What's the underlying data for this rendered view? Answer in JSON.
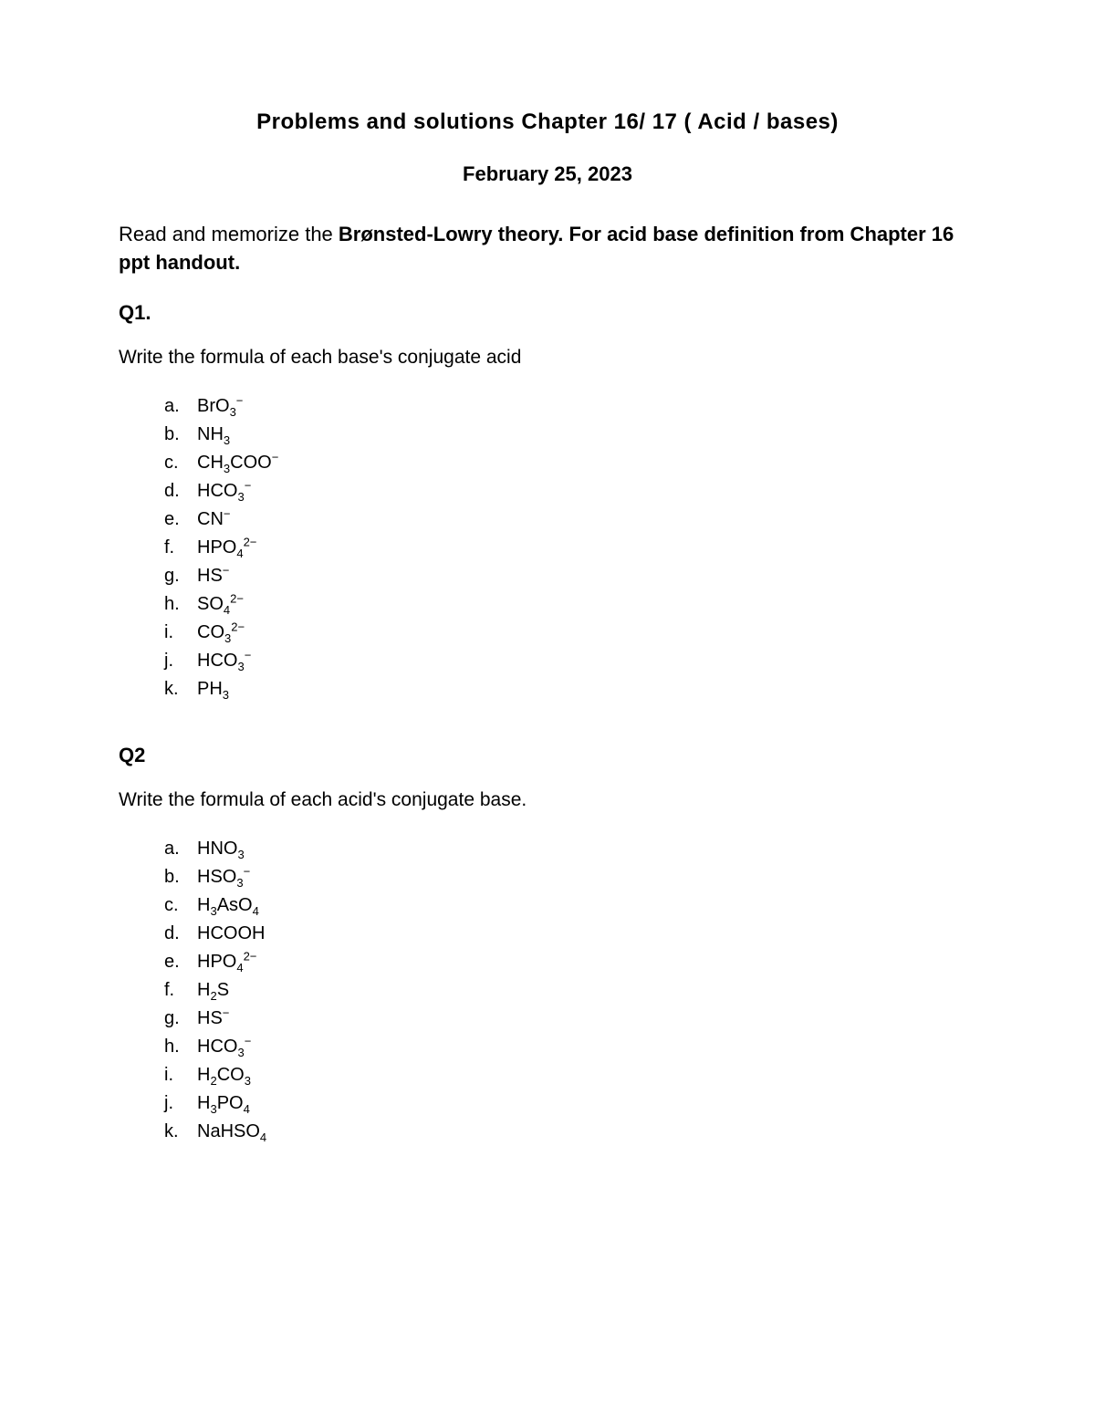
{
  "title": "Problems and  solutions  Chapter 16/  17  ( Acid / bases)",
  "date": "February 25, 2023",
  "intro_lead": "Read and memorize the  ",
  "intro_bold": "Brønsted-Lowry theory. For acid base definition from Chapter 16 ppt handout.",
  "q1": {
    "header": "Q1.",
    "prompt": "Write the formula of each base's conjugate acid",
    "items": [
      {
        "m": "a.",
        "f": "BrO<sub>3</sub><sup>−</sup>"
      },
      {
        "m": "b.",
        "f": "NH<sub>3</sub>"
      },
      {
        "m": "c.",
        "f": "CH<sub>3</sub>COO<sup>−</sup>"
      },
      {
        "m": "d.",
        "f": "HCO<sub>3</sub><sup>−</sup>"
      },
      {
        "m": "e.",
        "f": "CN<sup>−</sup>"
      },
      {
        "m": "f.",
        "f": "HPO<sub>4</sub><sup>2−</sup>"
      },
      {
        "m": "g.",
        "f": "HS<sup>−</sup>"
      },
      {
        "m": "h.",
        "f": "SO<sub>4</sub><sup>2−</sup>"
      },
      {
        "m": "i.",
        "f": "CO<sub>3</sub><sup>2−</sup>"
      },
      {
        "m": "j.",
        "f": "HCO<sub>3</sub><sup>−</sup>"
      },
      {
        "m": "k.",
        "f": "PH<sub>3</sub>"
      }
    ]
  },
  "q2": {
    "header": "Q2",
    "prompt": "Write the formula of each acid's conjugate base.",
    "items": [
      {
        "m": "a.",
        "f": "HNO<sub>3</sub>"
      },
      {
        "m": "b.",
        "f": "HSO<sub>3</sub><sup>−</sup>"
      },
      {
        "m": "c.",
        "f": "H<sub>3</sub>AsO<sub>4</sub>"
      },
      {
        "m": "d.",
        "f": "HCOOH"
      },
      {
        "m": "e.",
        "f": "HPO<sub>4</sub><sup>2−</sup>"
      },
      {
        "m": "f.",
        "f": "H<sub>2</sub>S"
      },
      {
        "m": "g.",
        "f": "HS<sup>−</sup>"
      },
      {
        "m": "h.",
        "f": "HCO<sub>3</sub><sup>−</sup>"
      },
      {
        "m": "i.",
        "f": "H<sub>2</sub>CO<sub>3</sub>"
      },
      {
        "m": "j.",
        "f": "H<sub>3</sub>PO<sub>4</sub>"
      },
      {
        "m": "k.",
        "f": "NaHSO<sub>4</sub>"
      }
    ]
  }
}
